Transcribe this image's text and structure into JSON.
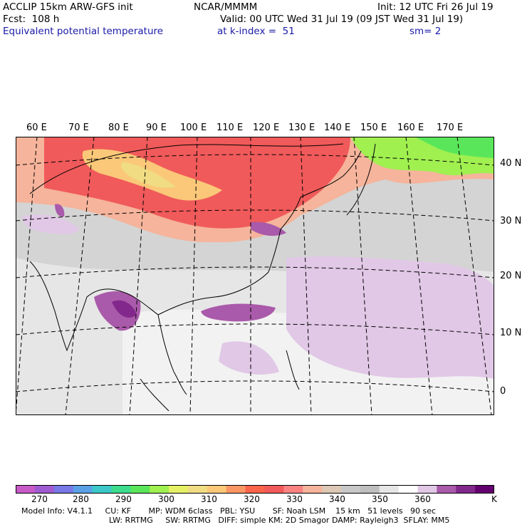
{
  "header": {
    "model": "ACCLIP 15km ARW-GFS init",
    "org": "NCAR/MMMM",
    "init": "Init: 12 UTC Fri 26 Jul 19",
    "fcst": "Fcst:  108 h",
    "valid": "Valid: 00 UTC Wed 31 Jul 19 (09 JST Wed 31 Jul 19)",
    "field": "Equivalent potential temperature",
    "level": "at k-index =  51",
    "smooth": "sm= 2"
  },
  "lon_labels": [
    "60 E",
    "70 E",
    "80 E",
    "90 E",
    "100 E",
    "110 E",
    "120 E",
    "130 E",
    "140 E",
    "150 E",
    "160 E",
    "170 E"
  ],
  "lat_labels": [
    "40 N",
    "30 N",
    "20 N",
    "10 N",
    "0"
  ],
  "colorbar": {
    "colors": [
      "#c85ac8",
      "#a05ad2",
      "#7878e6",
      "#5aa0e6",
      "#3cc8c8",
      "#3cdc8c",
      "#5ae65a",
      "#a0f050",
      "#e6f064",
      "#f0dc82",
      "#fac878",
      "#fa9664",
      "#fa644b",
      "#f05a5a",
      "#fa8282",
      "#f5b49b",
      "#dcc8b4",
      "#c8c8c8",
      "#bebebe",
      "#e6e6e6",
      "#ffffff",
      "#e1c8e6",
      "#aa5aaa",
      "#82288c",
      "#64006e"
    ],
    "labels": [
      "270",
      "280",
      "290",
      "300",
      "310",
      "320",
      "330",
      "340",
      "350",
      "360"
    ],
    "unit": "K"
  },
  "model_info": {
    "line1": "Model Info: V4.1.1     CU: KF       MP: WDM 6class   PBL: YSU       SF: Noah LSM    15 km   51 levels   90 sec",
    "line2": "LW: RRTMG     SW: RRTMG   DIFF: simple KM: 2D Smagor DAMP: Rayleigh3  SFLAY: MM5"
  }
}
